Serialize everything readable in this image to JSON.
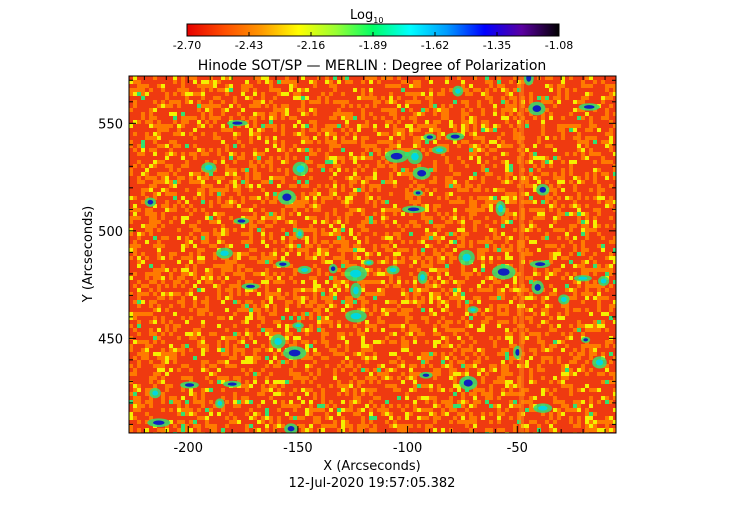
{
  "colorbar": {
    "label_main": "Log",
    "label_sub": "10",
    "ticks": [
      "-2.70",
      "-2.43",
      "-2.16",
      "-1.89",
      "-1.62",
      "-1.35",
      "-1.08"
    ],
    "range": [
      -2.7,
      -1.08
    ],
    "colormap": [
      "#e60000",
      "#ff4d00",
      "#ff9900",
      "#ffff00",
      "#99ff33",
      "#00ff66",
      "#00ffff",
      "#0099ff",
      "#0000ff",
      "#5a00a0",
      "#000000"
    ]
  },
  "chart_data": {
    "type": "heatmap",
    "title": "Hinode SOT/SP — MERLIN : Degree of Polarization",
    "xlabel": "X (Arcseconds)",
    "ylabel": "Y (Arcseconds)",
    "xlim": [
      -227,
      -5
    ],
    "ylim": [
      406,
      572
    ],
    "xticks": [
      -200,
      -150,
      -100,
      -50
    ],
    "yticks": [
      450,
      500,
      550
    ],
    "footer": "12-Jul-2020 19:57:05.382",
    "dominant_value_range": [
      -2.7,
      -2.3
    ],
    "colors": {
      "base": "#ef3a10",
      "orange": "#ff7a00",
      "yellow": "#f4f000",
      "green": "#33e070",
      "cyan": "#00d8e0",
      "blue": "#1020c0"
    }
  }
}
